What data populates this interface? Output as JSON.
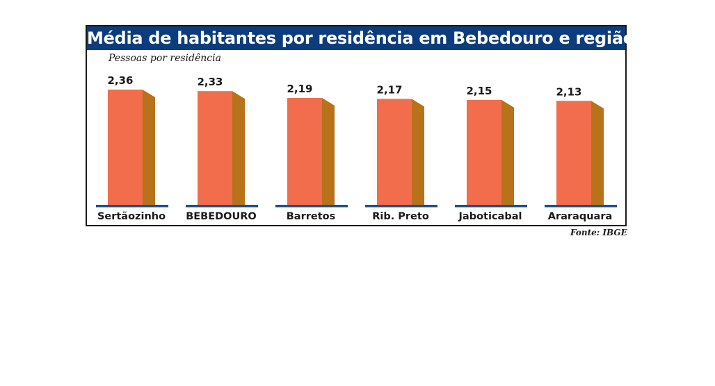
{
  "chart_data": {
    "type": "bar",
    "title": "Média de habitantes por residência em Bebedouro e região",
    "subtitle": "Pessoas por residência",
    "source": "Fonte: IBGE",
    "categories": [
      "Sertãozinho",
      "BEBEDOURO",
      "Barretos",
      "Rib. Preto",
      "Jaboticabal",
      "Araraquara"
    ],
    "values": [
      2.36,
      2.33,
      2.19,
      2.17,
      2.15,
      2.13
    ],
    "value_labels": [
      "2,36",
      "2,33",
      "2,19",
      "2,17",
      "2,15",
      "2,13"
    ],
    "bar_style": "3d",
    "colors": {
      "bar_front": "#f26d4b",
      "bar_side": "#b8721a",
      "baseline": "#1c4f8c",
      "title_bg": "#0d3c7c"
    }
  }
}
